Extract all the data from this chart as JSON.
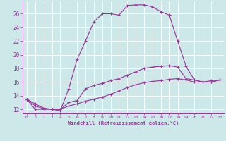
{
  "xlabel": "Windchill (Refroidissement éolien,°C)",
  "background_color": "#cce8e8",
  "line_color": "#993399",
  "grid_color": "#aacccc",
  "xlim": [
    -0.5,
    23.5
  ],
  "ylim": [
    11.5,
    27.8
  ],
  "yticks": [
    12,
    14,
    16,
    18,
    20,
    22,
    24,
    26
  ],
  "xticks": [
    0,
    1,
    2,
    3,
    4,
    5,
    6,
    7,
    8,
    9,
    10,
    11,
    12,
    13,
    14,
    15,
    16,
    17,
    18,
    19,
    20,
    21,
    22,
    23
  ],
  "curve1_x": [
    0,
    1,
    2,
    3,
    4,
    5,
    6,
    7,
    8,
    9,
    10,
    11,
    12,
    13,
    14,
    15,
    16,
    17,
    18,
    19,
    20,
    21,
    22,
    23
  ],
  "curve1_y": [
    13.5,
    12.0,
    12.0,
    12.0,
    11.8,
    15.0,
    19.3,
    22.0,
    24.8,
    26.0,
    26.0,
    25.8,
    27.2,
    27.3,
    27.3,
    27.0,
    26.3,
    25.8,
    22.0,
    18.3,
    16.3,
    16.0,
    16.2,
    16.3
  ],
  "curve2_x": [
    0,
    1,
    2,
    3,
    4,
    5,
    6,
    7,
    8,
    9,
    10,
    11,
    12,
    13,
    14,
    15,
    16,
    17,
    18,
    19,
    20,
    21,
    22,
    23
  ],
  "curve2_y": [
    13.5,
    12.5,
    12.1,
    12.0,
    12.0,
    13.0,
    13.3,
    15.0,
    15.5,
    15.8,
    16.2,
    16.5,
    17.0,
    17.5,
    18.0,
    18.2,
    18.3,
    18.4,
    18.2,
    16.5,
    16.3,
    16.0,
    16.0,
    16.3
  ],
  "curve3_x": [
    0,
    1,
    2,
    3,
    4,
    5,
    6,
    7,
    8,
    9,
    10,
    11,
    12,
    13,
    14,
    15,
    16,
    17,
    18,
    19,
    20,
    21,
    22,
    23
  ],
  "curve3_y": [
    13.5,
    12.8,
    12.2,
    12.0,
    12.0,
    12.5,
    12.8,
    13.2,
    13.5,
    13.8,
    14.2,
    14.7,
    15.2,
    15.6,
    15.9,
    16.1,
    16.2,
    16.4,
    16.5,
    16.3,
    16.0,
    16.0,
    16.0,
    16.3
  ]
}
